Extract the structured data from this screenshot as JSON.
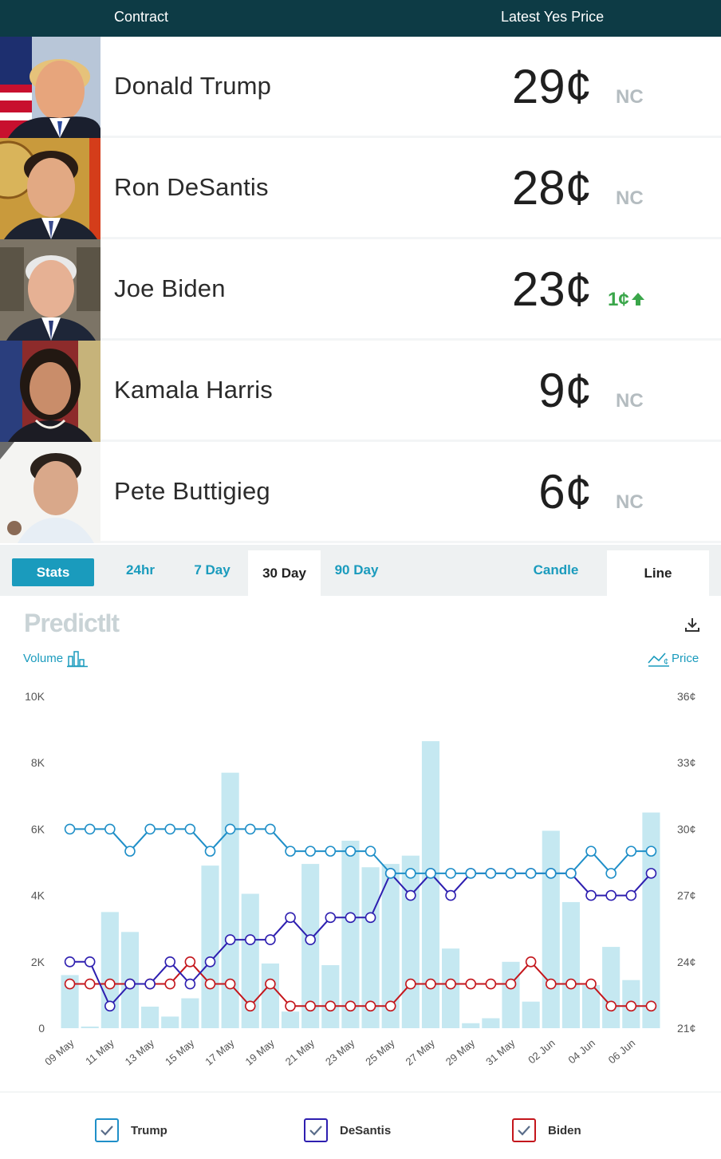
{
  "header": {
    "contract_label": "Contract",
    "price_label": "Latest Yes Price"
  },
  "candidates": [
    {
      "name": "Donald Trump",
      "price": "29¢",
      "change": "NC",
      "direction": "none"
    },
    {
      "name": "Ron DeSantis",
      "price": "28¢",
      "change": "NC",
      "direction": "none"
    },
    {
      "name": "Joe Biden",
      "price": "23¢",
      "change": "1¢",
      "direction": "up"
    },
    {
      "name": "Kamala Harris",
      "price": "9¢",
      "change": "NC",
      "direction": "none"
    },
    {
      "name": "Pete Buttigieg",
      "price": "6¢",
      "change": "NC",
      "direction": "none"
    }
  ],
  "tabs": {
    "stats": "Stats",
    "h24": "24hr",
    "d7": "7 Day",
    "d30": "30 Day",
    "d90": "90 Day",
    "candle": "Candle",
    "line": "Line"
  },
  "chart_header": {
    "logo": "PredictIt",
    "volume_label": "Volume",
    "price_label": "Price"
  },
  "colors": {
    "header_bg": "#0d3b45",
    "accent": "#1a9bbd",
    "trump": "#1f8fc8",
    "desantis": "#2e1fb0",
    "biden": "#c4161c",
    "volume_bar": "#c5e8f1",
    "up": "#3aa64a"
  },
  "chart_data": {
    "type": "bar+line",
    "x_tick_labels": [
      "09 May",
      "11 May",
      "13 May",
      "15 May",
      "17 May",
      "19 May",
      "21 May",
      "23 May",
      "25 May",
      "27 May",
      "29 May",
      "31 May",
      "02 Jun",
      "04 Jun",
      "06 Jun"
    ],
    "left_axis": {
      "ticks": [
        "0",
        "2K",
        "4K",
        "6K",
        "8K",
        "10K"
      ],
      "range": [
        0,
        10000
      ]
    },
    "right_axis": {
      "ticks": [
        "21¢",
        "24¢",
        "27¢",
        "30¢",
        "33¢",
        "36¢"
      ],
      "range": [
        21,
        36
      ]
    },
    "volume": [
      1600,
      50,
      3500,
      2900,
      650,
      350,
      900,
      4900,
      7700,
      4050,
      1950,
      500,
      4950,
      1900,
      5650,
      4850,
      4950,
      5200,
      8650,
      2400,
      150,
      300,
      2000,
      800,
      5950,
      3800,
      1300,
      2450,
      1450,
      6500
    ],
    "series": [
      {
        "name": "Trump",
        "values": [
          30,
          30,
          30,
          29,
          30,
          30,
          30,
          29,
          30,
          30,
          30,
          29,
          29,
          29,
          29,
          29,
          28,
          28,
          28,
          28,
          28,
          28,
          28,
          28,
          28,
          28,
          29,
          28,
          29,
          29
        ]
      },
      {
        "name": "DeSantis",
        "values": [
          24,
          24,
          22,
          23,
          23,
          24,
          23,
          24,
          25,
          25,
          25,
          26,
          25,
          26,
          26,
          26,
          28,
          27,
          28,
          27,
          28,
          28,
          28,
          28,
          28,
          28,
          27,
          27,
          27,
          28
        ]
      },
      {
        "name": "Biden",
        "values": [
          23,
          23,
          23,
          23,
          23,
          23,
          24,
          23,
          23,
          22,
          23,
          22,
          22,
          22,
          22,
          22,
          22,
          23,
          23,
          23,
          23,
          23,
          23,
          24,
          23,
          23,
          23,
          22,
          22,
          22
        ]
      }
    ]
  },
  "legend": {
    "trump": "Trump",
    "desantis": "DeSantis",
    "biden": "Biden"
  }
}
